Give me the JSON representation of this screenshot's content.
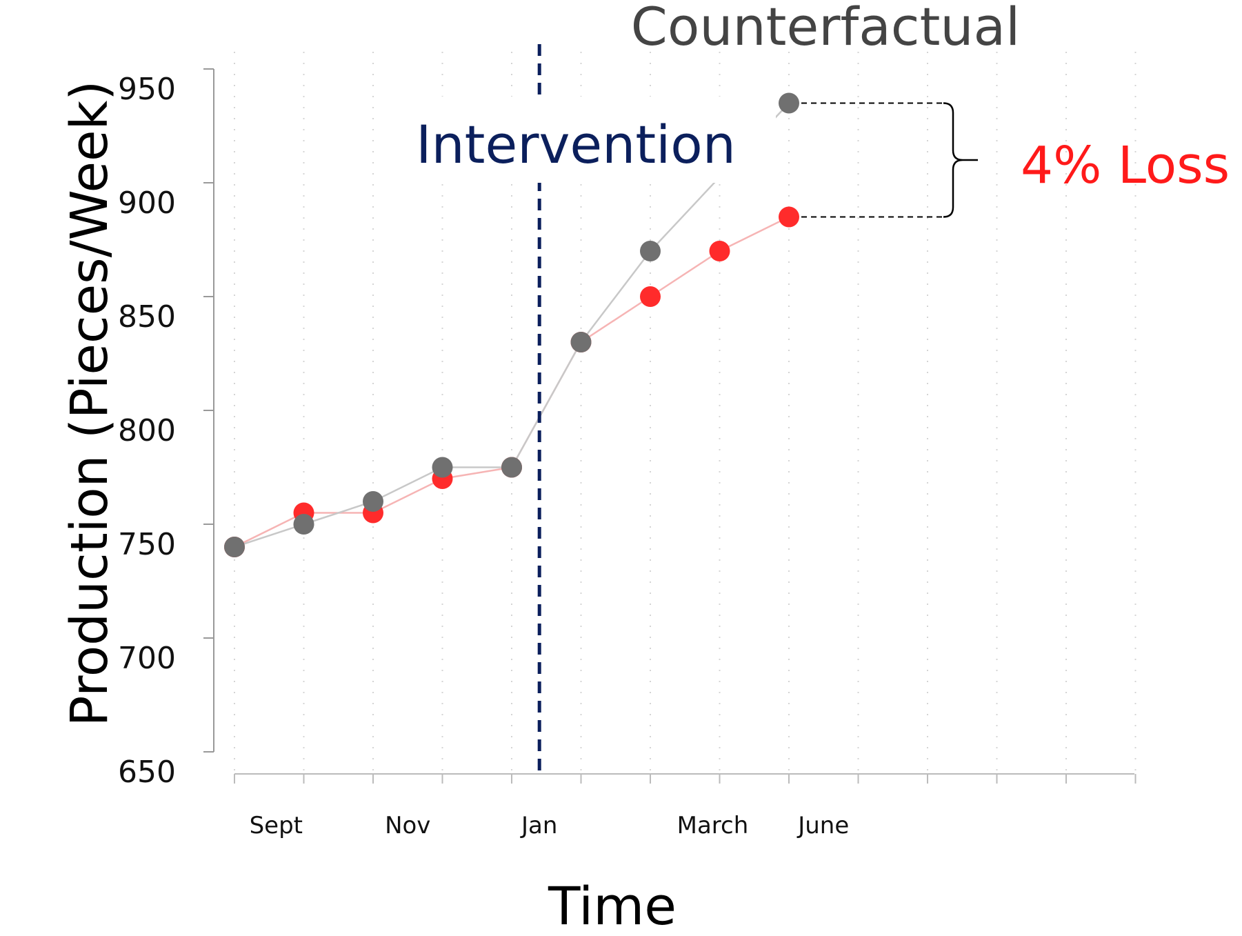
{
  "chart_data": {
    "type": "line",
    "ylabel": "Production (Pieces/Week)",
    "xlabel": "Time",
    "ylim": [
      650,
      950
    ],
    "yticks": [
      650,
      700,
      750,
      800,
      850,
      900,
      950
    ],
    "x_positions": [
      1,
      2,
      3,
      4,
      5,
      6,
      7,
      8,
      9,
      10,
      11,
      12,
      13,
      14
    ],
    "x_tick_labels": [
      {
        "x": 1.6,
        "label": "Sept"
      },
      {
        "x": 3.5,
        "label": "Nov"
      },
      {
        "x": 5.4,
        "label": "Jan"
      },
      {
        "x": 7.9,
        "label": "March"
      },
      {
        "x": 9.5,
        "label": "June"
      }
    ],
    "series": [
      {
        "color": "#ff2b2b",
        "line_color": "#f6b4b4",
        "points": [
          [
            1,
            740
          ],
          [
            2,
            755
          ],
          [
            3,
            755
          ],
          [
            4,
            770
          ],
          [
            5,
            775
          ],
          [
            6,
            830
          ],
          [
            7,
            850
          ],
          [
            8,
            870
          ],
          [
            9,
            885
          ]
        ]
      },
      {
        "color": "#707070",
        "line_color": "#c8c8c8",
        "points": [
          [
            1,
            740
          ],
          [
            2,
            750
          ],
          [
            3,
            760
          ],
          [
            4,
            775
          ],
          [
            5,
            775
          ],
          [
            6,
            830
          ],
          [
            7,
            870
          ],
          [
            9,
            935
          ]
        ]
      }
    ],
    "intervention_x": 5.4,
    "grid": true,
    "annotations": {
      "intervention": "Intervention",
      "counterfactual": "Counterfactual",
      "loss": "4% Loss"
    }
  }
}
